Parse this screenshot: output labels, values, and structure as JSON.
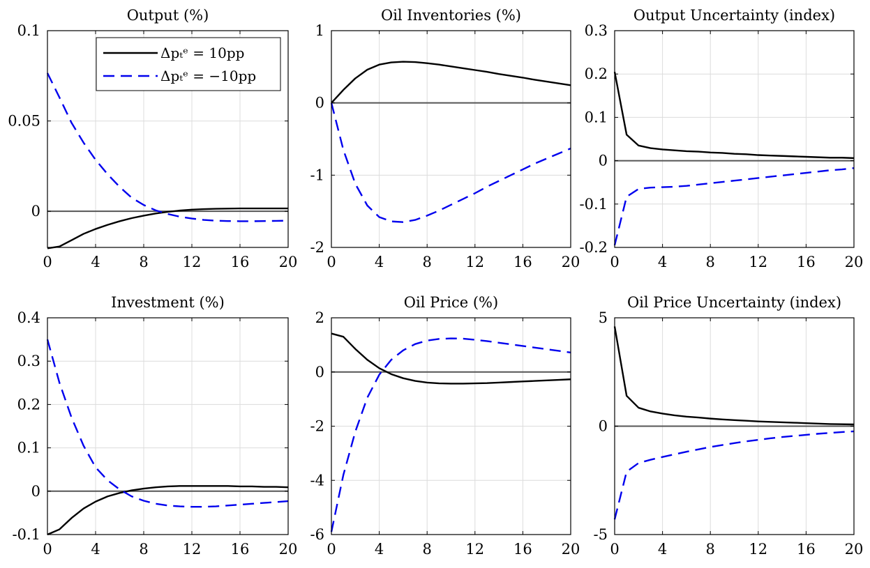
{
  "chart_data": [
    {
      "type": "line",
      "title": "Output (%)",
      "x": [
        0,
        1,
        2,
        3,
        4,
        5,
        6,
        7,
        8,
        9,
        10,
        11,
        12,
        13,
        14,
        15,
        16,
        17,
        18,
        19,
        20
      ],
      "xlim": [
        0,
        20
      ],
      "ylim": [
        -0.02,
        0.1
      ],
      "xticks": [
        0,
        4,
        8,
        12,
        16,
        20
      ],
      "xtick_labels": [
        "0",
        "4",
        "8",
        "12",
        "16",
        "20"
      ],
      "yticks": [
        0,
        0.05,
        0.1
      ],
      "ytick_labels": [
        "0",
        "0.05",
        "0.1"
      ],
      "grid": true,
      "legend_position": "top-right",
      "series": [
        {
          "name": "Δp_t^e = 10pp",
          "legend_label": "Δpₜᵉ = 10pp",
          "color": "#000000",
          "dash": "solid",
          "values": [
            -0.0205,
            -0.0195,
            -0.016,
            -0.0125,
            -0.0098,
            -0.0075,
            -0.0055,
            -0.0038,
            -0.0024,
            -0.0012,
            -0.0003,
            0.0004,
            0.0009,
            0.0012,
            0.0014,
            0.0015,
            0.0016,
            0.0016,
            0.0016,
            0.0016,
            0.0016
          ]
        },
        {
          "name": "Δp_t^e = −10pp",
          "legend_label": "Δpₜᵉ = −10pp",
          "color": "#0000ee",
          "dash": "dashed",
          "values": [
            0.0765,
            0.063,
            0.049,
            0.038,
            0.0285,
            0.0205,
            0.0135,
            0.0075,
            0.0035,
            0.0005,
            -0.0015,
            -0.003,
            -0.004,
            -0.0048,
            -0.0052,
            -0.0054,
            -0.0055,
            -0.0055,
            -0.0054,
            -0.0053,
            -0.0052
          ]
        }
      ]
    },
    {
      "type": "line",
      "title": "Oil Inventories (%)",
      "x": [
        0,
        1,
        2,
        3,
        4,
        5,
        6,
        7,
        8,
        9,
        10,
        11,
        12,
        13,
        14,
        15,
        16,
        17,
        18,
        19,
        20
      ],
      "xlim": [
        0,
        20
      ],
      "ylim": [
        -2,
        1
      ],
      "xticks": [
        0,
        4,
        8,
        12,
        16,
        20
      ],
      "xtick_labels": [
        "0",
        "4",
        "8",
        "12",
        "16",
        "20"
      ],
      "yticks": [
        -2,
        -1,
        0,
        1
      ],
      "ytick_labels": [
        "-2",
        "-1",
        "0",
        "1"
      ],
      "grid": true,
      "series": [
        {
          "name": "Δp_t^e = 10pp",
          "color": "#000000",
          "dash": "solid",
          "values": [
            0.0,
            0.18,
            0.34,
            0.46,
            0.53,
            0.56,
            0.57,
            0.565,
            0.55,
            0.53,
            0.505,
            0.48,
            0.455,
            0.43,
            0.4,
            0.375,
            0.35,
            0.32,
            0.295,
            0.27,
            0.245
          ]
        },
        {
          "name": "Δp_t^e = −10pp",
          "color": "#0000ee",
          "dash": "dashed",
          "values": [
            0.0,
            -0.65,
            -1.12,
            -1.42,
            -1.58,
            -1.64,
            -1.65,
            -1.62,
            -1.56,
            -1.49,
            -1.41,
            -1.33,
            -1.25,
            -1.16,
            -1.08,
            -1.0,
            -0.92,
            -0.84,
            -0.77,
            -0.7,
            -0.63
          ]
        }
      ]
    },
    {
      "type": "line",
      "title": "Output Uncertainty (index)",
      "x": [
        0,
        1,
        2,
        3,
        4,
        5,
        6,
        7,
        8,
        9,
        10,
        11,
        12,
        13,
        14,
        15,
        16,
        17,
        18,
        19,
        20
      ],
      "xlim": [
        0,
        20
      ],
      "ylim": [
        -0.2,
        0.3
      ],
      "xticks": [
        0,
        4,
        8,
        12,
        16,
        20
      ],
      "xtick_labels": [
        "0",
        "4",
        "8",
        "12",
        "16",
        "20"
      ],
      "yticks": [
        -0.2,
        -0.1,
        0,
        0.1,
        0.2,
        0.3
      ],
      "ytick_labels": [
        "-0.2",
        "-0.1",
        "0",
        "0.1",
        "0.2",
        "0.3"
      ],
      "grid": true,
      "series": [
        {
          "name": "Δp_t^e = 10pp",
          "color": "#000000",
          "dash": "solid",
          "values": [
            0.205,
            0.06,
            0.035,
            0.029,
            0.026,
            0.024,
            0.022,
            0.021,
            0.019,
            0.018,
            0.016,
            0.015,
            0.013,
            0.012,
            0.011,
            0.01,
            0.009,
            0.008,
            0.007,
            0.007,
            0.006
          ]
        },
        {
          "name": "Δp_t^e = −10pp",
          "color": "#0000ee",
          "dash": "dashed",
          "values": [
            -0.195,
            -0.083,
            -0.065,
            -0.062,
            -0.061,
            -0.06,
            -0.058,
            -0.055,
            -0.052,
            -0.049,
            -0.046,
            -0.043,
            -0.04,
            -0.037,
            -0.034,
            -0.031,
            -0.028,
            -0.025,
            -0.022,
            -0.02,
            -0.017
          ]
        }
      ]
    },
    {
      "type": "line",
      "title": "Investment (%)",
      "x": [
        0,
        1,
        2,
        3,
        4,
        5,
        6,
        7,
        8,
        9,
        10,
        11,
        12,
        13,
        14,
        15,
        16,
        17,
        18,
        19,
        20
      ],
      "xlim": [
        0,
        20
      ],
      "ylim": [
        -0.1,
        0.4
      ],
      "xticks": [
        0,
        4,
        8,
        12,
        16,
        20
      ],
      "xtick_labels": [
        "0",
        "4",
        "8",
        "12",
        "16",
        "20"
      ],
      "yticks": [
        -0.1,
        0,
        0.1,
        0.2,
        0.3,
        0.4
      ],
      "ytick_labels": [
        "-0.1",
        "0",
        "0.1",
        "0.2",
        "0.3",
        "0.4"
      ],
      "grid": true,
      "series": [
        {
          "name": "Δp_t^e = 10pp",
          "color": "#000000",
          "dash": "solid",
          "values": [
            -0.1,
            -0.088,
            -0.062,
            -0.04,
            -0.024,
            -0.012,
            -0.004,
            0.002,
            0.006,
            0.009,
            0.011,
            0.012,
            0.012,
            0.012,
            0.012,
            0.012,
            0.011,
            0.011,
            0.01,
            0.01,
            0.009
          ]
        },
        {
          "name": "Δp_t^e = −10pp",
          "color": "#0000ee",
          "dash": "dashed",
          "values": [
            0.35,
            0.25,
            0.17,
            0.105,
            0.055,
            0.025,
            0.004,
            -0.012,
            -0.022,
            -0.029,
            -0.033,
            -0.035,
            -0.036,
            -0.036,
            -0.035,
            -0.033,
            -0.031,
            -0.029,
            -0.027,
            -0.025,
            -0.023
          ]
        }
      ]
    },
    {
      "type": "line",
      "title": "Oil Price (%)",
      "x": [
        0,
        1,
        2,
        3,
        4,
        5,
        6,
        7,
        8,
        9,
        10,
        11,
        12,
        13,
        14,
        15,
        16,
        17,
        18,
        19,
        20
      ],
      "xlim": [
        0,
        20
      ],
      "ylim": [
        -6,
        2
      ],
      "xticks": [
        0,
        4,
        8,
        12,
        16,
        20
      ],
      "xtick_labels": [
        "0",
        "4",
        "8",
        "12",
        "16",
        "20"
      ],
      "yticks": [
        -6,
        -4,
        -2,
        0,
        2
      ],
      "ytick_labels": [
        "-6",
        "-4",
        "-2",
        "0",
        "2"
      ],
      "grid": true,
      "series": [
        {
          "name": "Δp_t^e = 10pp",
          "color": "#000000",
          "dash": "solid",
          "values": [
            1.42,
            1.3,
            0.85,
            0.45,
            0.14,
            -0.08,
            -0.23,
            -0.33,
            -0.39,
            -0.42,
            -0.43,
            -0.43,
            -0.42,
            -0.41,
            -0.39,
            -0.37,
            -0.35,
            -0.33,
            -0.31,
            -0.29,
            -0.27
          ]
        },
        {
          "name": "Δp_t^e = −10pp",
          "color": "#0000ee",
          "dash": "dashed",
          "values": [
            -5.9,
            -3.8,
            -2.2,
            -0.95,
            -0.1,
            0.45,
            0.8,
            1.03,
            1.16,
            1.22,
            1.24,
            1.23,
            1.19,
            1.14,
            1.08,
            1.02,
            0.96,
            0.9,
            0.84,
            0.78,
            0.72
          ]
        }
      ]
    },
    {
      "type": "line",
      "title": "Oil Price Uncertainty (index)",
      "x": [
        0,
        1,
        2,
        3,
        4,
        5,
        6,
        7,
        8,
        9,
        10,
        11,
        12,
        13,
        14,
        15,
        16,
        17,
        18,
        19,
        20
      ],
      "xlim": [
        0,
        20
      ],
      "ylim": [
        -5,
        5
      ],
      "xticks": [
        0,
        4,
        8,
        12,
        16,
        20
      ],
      "xtick_labels": [
        "0",
        "4",
        "8",
        "12",
        "16",
        "20"
      ],
      "yticks": [
        -5,
        0,
        5
      ],
      "ytick_labels": [
        "-5",
        "0",
        "5"
      ],
      "grid": true,
      "series": [
        {
          "name": "Δp_t^e = 10pp",
          "color": "#000000",
          "dash": "solid",
          "values": [
            4.6,
            1.4,
            0.85,
            0.68,
            0.58,
            0.5,
            0.44,
            0.4,
            0.35,
            0.31,
            0.28,
            0.25,
            0.22,
            0.2,
            0.18,
            0.16,
            0.14,
            0.12,
            0.1,
            0.09,
            0.08
          ]
        },
        {
          "name": "Δp_t^e = −10pp",
          "color": "#0000ee",
          "dash": "dashed",
          "values": [
            -4.3,
            -2.1,
            -1.7,
            -1.55,
            -1.42,
            -1.3,
            -1.18,
            -1.07,
            -0.96,
            -0.87,
            -0.78,
            -0.7,
            -0.63,
            -0.56,
            -0.5,
            -0.45,
            -0.4,
            -0.35,
            -0.31,
            -0.27,
            -0.24
          ]
        }
      ]
    }
  ]
}
